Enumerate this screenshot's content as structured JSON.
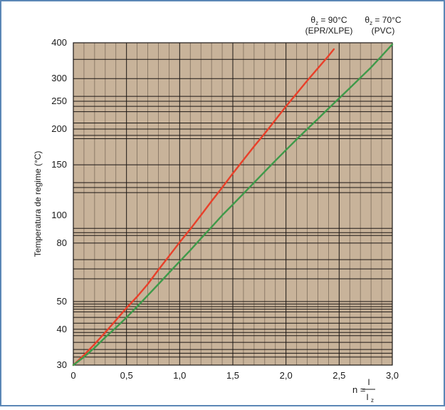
{
  "chart_data": {
    "type": "line",
    "title": "",
    "xlabel": {
      "prefix": "n = ",
      "numerator": "I",
      "denominator": "I",
      "denominator_subscript": "z"
    },
    "ylabel": "Temperatura de regime (°C)",
    "xlim": [
      0,
      3.0
    ],
    "ylim": [
      30,
      400
    ],
    "yscale": "log",
    "x_ticks": [
      {
        "value": 0,
        "label": "0"
      },
      {
        "value": 0.5,
        "label": "0,5"
      },
      {
        "value": 1.0,
        "label": "1,0"
      },
      {
        "value": 1.5,
        "label": "1,5"
      },
      {
        "value": 2.0,
        "label": "2,0"
      },
      {
        "value": 2.5,
        "label": "2,5"
      },
      {
        "value": 3.0,
        "label": "3,0"
      }
    ],
    "y_ticks": [
      {
        "value": 30,
        "label": "30"
      },
      {
        "value": 40,
        "label": "40"
      },
      {
        "value": 50,
        "label": "50"
      },
      {
        "value": 80,
        "label": "80"
      },
      {
        "value": 100,
        "label": "100"
      },
      {
        "value": 150,
        "label": "150"
      },
      {
        "value": 200,
        "label": "200"
      },
      {
        "value": 250,
        "label": "250"
      },
      {
        "value": 300,
        "label": "300"
      },
      {
        "value": 400,
        "label": "400"
      }
    ],
    "x_grid_step": 0.1,
    "y_grid_values": [
      32,
      33,
      34,
      36,
      38,
      39,
      40,
      42,
      44,
      46,
      47,
      48,
      49,
      50,
      60,
      65,
      70,
      80,
      85,
      87,
      90,
      120,
      125,
      130,
      150,
      185,
      190,
      200,
      210,
      230,
      240,
      250,
      260,
      300,
      350,
      400
    ],
    "grid": true,
    "series": [
      {
        "label": {
          "theta": "θ",
          "subscript": "z",
          "value": " = 90°C",
          "line2": "(EPR/XLPE)"
        },
        "color": "#e8402a",
        "x": [
          0,
          0.1,
          0.2,
          0.3,
          0.4,
          0.5,
          0.6,
          0.7,
          0.8,
          0.9,
          1.0,
          1.1,
          1.2,
          1.3,
          1.4,
          1.5,
          1.6,
          1.7,
          1.8,
          1.9,
          2.0,
          2.1,
          2.2,
          2.3,
          2.4,
          2.45
        ],
        "y": [
          30,
          32.5,
          35.5,
          39,
          43,
          47.5,
          52,
          57.5,
          64.5,
          72,
          80.5,
          89.5,
          100,
          112,
          125,
          140,
          156,
          174,
          193,
          215,
          240,
          266,
          295,
          326,
          360,
          380
        ]
      },
      {
        "label": {
          "theta": "θ",
          "subscript": "z",
          "value": " = 70°C",
          "line2": "(PVC)"
        },
        "color": "#3f9a4a",
        "x": [
          0,
          0.1,
          0.2,
          0.3,
          0.4,
          0.5,
          0.6,
          0.7,
          0.8,
          0.9,
          1.0,
          1.1,
          1.2,
          1.3,
          1.4,
          1.5,
          1.6,
          1.7,
          1.8,
          1.9,
          2.0,
          2.1,
          2.2,
          2.3,
          2.4,
          2.5,
          2.6,
          2.7,
          2.8,
          2.9,
          3.0
        ],
        "y": [
          30,
          32,
          34.5,
          37.5,
          40.5,
          44,
          48,
          52.5,
          57.5,
          63,
          69,
          75.5,
          83,
          91,
          100,
          109,
          119,
          130,
          142,
          155,
          169,
          184,
          200,
          217,
          236,
          256,
          278,
          302,
          328,
          360,
          395
        ]
      }
    ]
  },
  "colors": {
    "background": "#ffffff",
    "plot_background": "#c8b39a",
    "frame": "#5b87b6",
    "major_grid": "#1c1714",
    "minor_grid": "#7e6d5c",
    "text": "#1a1a1a"
  }
}
